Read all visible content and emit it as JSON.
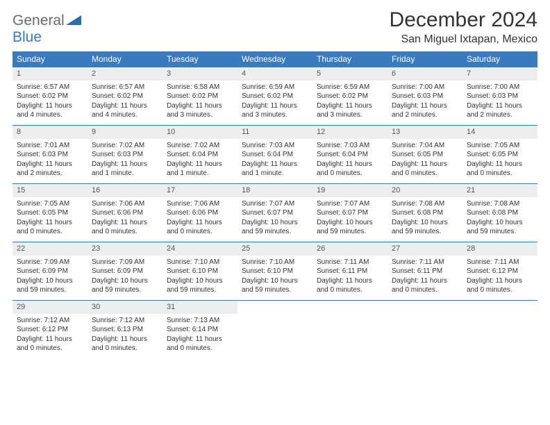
{
  "logo": {
    "top": "General",
    "bottom": "Blue"
  },
  "title": "December 2024",
  "location": "San Miguel Ixtapan, Mexico",
  "weekdays": [
    "Sunday",
    "Monday",
    "Tuesday",
    "Wednesday",
    "Thursday",
    "Friday",
    "Saturday"
  ],
  "colors": {
    "header_bg": "#3a7abf",
    "daynum_bg": "#eceeef",
    "border": "#3a7abf",
    "text": "#333333",
    "logo_gray": "#6a6a6a",
    "logo_blue": "#3a7abf"
  },
  "weeks": [
    [
      {
        "n": "1",
        "sunrise": "Sunrise: 6:57 AM",
        "sunset": "Sunset: 6:02 PM",
        "daylight": "Daylight: 11 hours and 4 minutes."
      },
      {
        "n": "2",
        "sunrise": "Sunrise: 6:57 AM",
        "sunset": "Sunset: 6:02 PM",
        "daylight": "Daylight: 11 hours and 4 minutes."
      },
      {
        "n": "3",
        "sunrise": "Sunrise: 6:58 AM",
        "sunset": "Sunset: 6:02 PM",
        "daylight": "Daylight: 11 hours and 3 minutes."
      },
      {
        "n": "4",
        "sunrise": "Sunrise: 6:59 AM",
        "sunset": "Sunset: 6:02 PM",
        "daylight": "Daylight: 11 hours and 3 minutes."
      },
      {
        "n": "5",
        "sunrise": "Sunrise: 6:59 AM",
        "sunset": "Sunset: 6:02 PM",
        "daylight": "Daylight: 11 hours and 3 minutes."
      },
      {
        "n": "6",
        "sunrise": "Sunrise: 7:00 AM",
        "sunset": "Sunset: 6:03 PM",
        "daylight": "Daylight: 11 hours and 2 minutes."
      },
      {
        "n": "7",
        "sunrise": "Sunrise: 7:00 AM",
        "sunset": "Sunset: 6:03 PM",
        "daylight": "Daylight: 11 hours and 2 minutes."
      }
    ],
    [
      {
        "n": "8",
        "sunrise": "Sunrise: 7:01 AM",
        "sunset": "Sunset: 6:03 PM",
        "daylight": "Daylight: 11 hours and 2 minutes."
      },
      {
        "n": "9",
        "sunrise": "Sunrise: 7:02 AM",
        "sunset": "Sunset: 6:03 PM",
        "daylight": "Daylight: 11 hours and 1 minute."
      },
      {
        "n": "10",
        "sunrise": "Sunrise: 7:02 AM",
        "sunset": "Sunset: 6:04 PM",
        "daylight": "Daylight: 11 hours and 1 minute."
      },
      {
        "n": "11",
        "sunrise": "Sunrise: 7:03 AM",
        "sunset": "Sunset: 6:04 PM",
        "daylight": "Daylight: 11 hours and 1 minute."
      },
      {
        "n": "12",
        "sunrise": "Sunrise: 7:03 AM",
        "sunset": "Sunset: 6:04 PM",
        "daylight": "Daylight: 11 hours and 0 minutes."
      },
      {
        "n": "13",
        "sunrise": "Sunrise: 7:04 AM",
        "sunset": "Sunset: 6:05 PM",
        "daylight": "Daylight: 11 hours and 0 minutes."
      },
      {
        "n": "14",
        "sunrise": "Sunrise: 7:05 AM",
        "sunset": "Sunset: 6:05 PM",
        "daylight": "Daylight: 11 hours and 0 minutes."
      }
    ],
    [
      {
        "n": "15",
        "sunrise": "Sunrise: 7:05 AM",
        "sunset": "Sunset: 6:05 PM",
        "daylight": "Daylight: 11 hours and 0 minutes."
      },
      {
        "n": "16",
        "sunrise": "Sunrise: 7:06 AM",
        "sunset": "Sunset: 6:06 PM",
        "daylight": "Daylight: 11 hours and 0 minutes."
      },
      {
        "n": "17",
        "sunrise": "Sunrise: 7:06 AM",
        "sunset": "Sunset: 6:06 PM",
        "daylight": "Daylight: 11 hours and 0 minutes."
      },
      {
        "n": "18",
        "sunrise": "Sunrise: 7:07 AM",
        "sunset": "Sunset: 6:07 PM",
        "daylight": "Daylight: 10 hours and 59 minutes."
      },
      {
        "n": "19",
        "sunrise": "Sunrise: 7:07 AM",
        "sunset": "Sunset: 6:07 PM",
        "daylight": "Daylight: 10 hours and 59 minutes."
      },
      {
        "n": "20",
        "sunrise": "Sunrise: 7:08 AM",
        "sunset": "Sunset: 6:08 PM",
        "daylight": "Daylight: 10 hours and 59 minutes."
      },
      {
        "n": "21",
        "sunrise": "Sunrise: 7:08 AM",
        "sunset": "Sunset: 6:08 PM",
        "daylight": "Daylight: 10 hours and 59 minutes."
      }
    ],
    [
      {
        "n": "22",
        "sunrise": "Sunrise: 7:09 AM",
        "sunset": "Sunset: 6:09 PM",
        "daylight": "Daylight: 10 hours and 59 minutes."
      },
      {
        "n": "23",
        "sunrise": "Sunrise: 7:09 AM",
        "sunset": "Sunset: 6:09 PM",
        "daylight": "Daylight: 10 hours and 59 minutes."
      },
      {
        "n": "24",
        "sunrise": "Sunrise: 7:10 AM",
        "sunset": "Sunset: 6:10 PM",
        "daylight": "Daylight: 10 hours and 59 minutes."
      },
      {
        "n": "25",
        "sunrise": "Sunrise: 7:10 AM",
        "sunset": "Sunset: 6:10 PM",
        "daylight": "Daylight: 10 hours and 59 minutes."
      },
      {
        "n": "26",
        "sunrise": "Sunrise: 7:11 AM",
        "sunset": "Sunset: 6:11 PM",
        "daylight": "Daylight: 11 hours and 0 minutes."
      },
      {
        "n": "27",
        "sunrise": "Sunrise: 7:11 AM",
        "sunset": "Sunset: 6:11 PM",
        "daylight": "Daylight: 11 hours and 0 minutes."
      },
      {
        "n": "28",
        "sunrise": "Sunrise: 7:11 AM",
        "sunset": "Sunset: 6:12 PM",
        "daylight": "Daylight: 11 hours and 0 minutes."
      }
    ],
    [
      {
        "n": "29",
        "sunrise": "Sunrise: 7:12 AM",
        "sunset": "Sunset: 6:12 PM",
        "daylight": "Daylight: 11 hours and 0 minutes."
      },
      {
        "n": "30",
        "sunrise": "Sunrise: 7:12 AM",
        "sunset": "Sunset: 6:13 PM",
        "daylight": "Daylight: 11 hours and 0 minutes."
      },
      {
        "n": "31",
        "sunrise": "Sunrise: 7:13 AM",
        "sunset": "Sunset: 6:14 PM",
        "daylight": "Daylight: 11 hours and 0 minutes."
      },
      null,
      null,
      null,
      null
    ]
  ]
}
